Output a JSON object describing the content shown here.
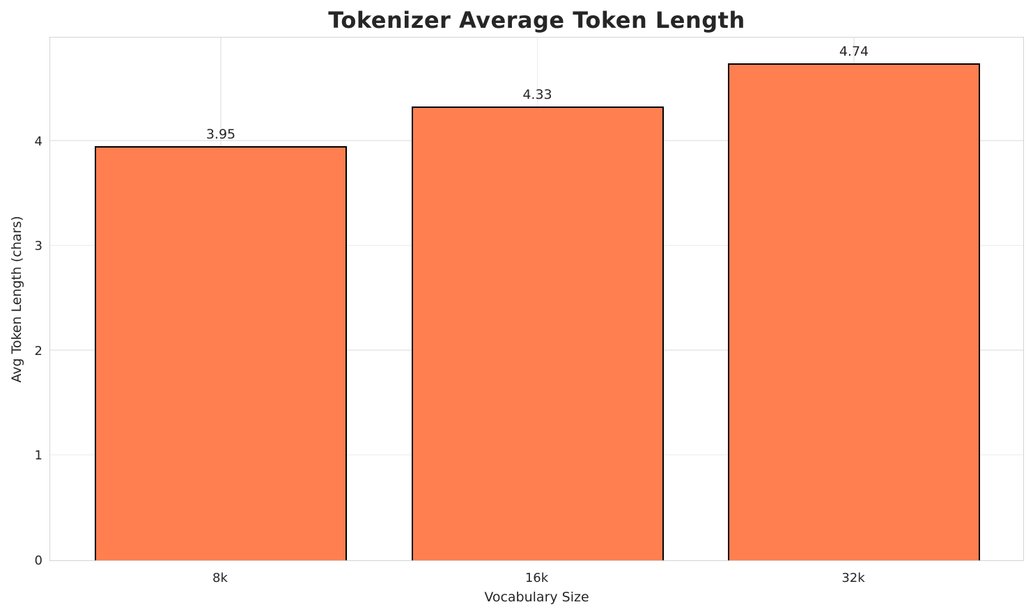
{
  "chart_data": {
    "type": "bar",
    "title": "Tokenizer Average Token Length",
    "xlabel": "Vocabulary Size",
    "ylabel": "Avg Token Length (chars)",
    "categories": [
      "8k",
      "16k",
      "32k"
    ],
    "values": [
      3.95,
      4.33,
      4.74
    ],
    "value_labels": [
      "3.95",
      "4.33",
      "4.74"
    ],
    "yticks": [
      0,
      1,
      2,
      3,
      4
    ],
    "ylim": [
      0,
      5
    ],
    "grid": "on",
    "legend": "none",
    "colors": {
      "bar_fill": "#ff7f50",
      "bar_edge": "#000000",
      "grid": "#ececec",
      "spine": "#d4d4d4",
      "text": "#262626",
      "background": "#ffffff"
    }
  }
}
